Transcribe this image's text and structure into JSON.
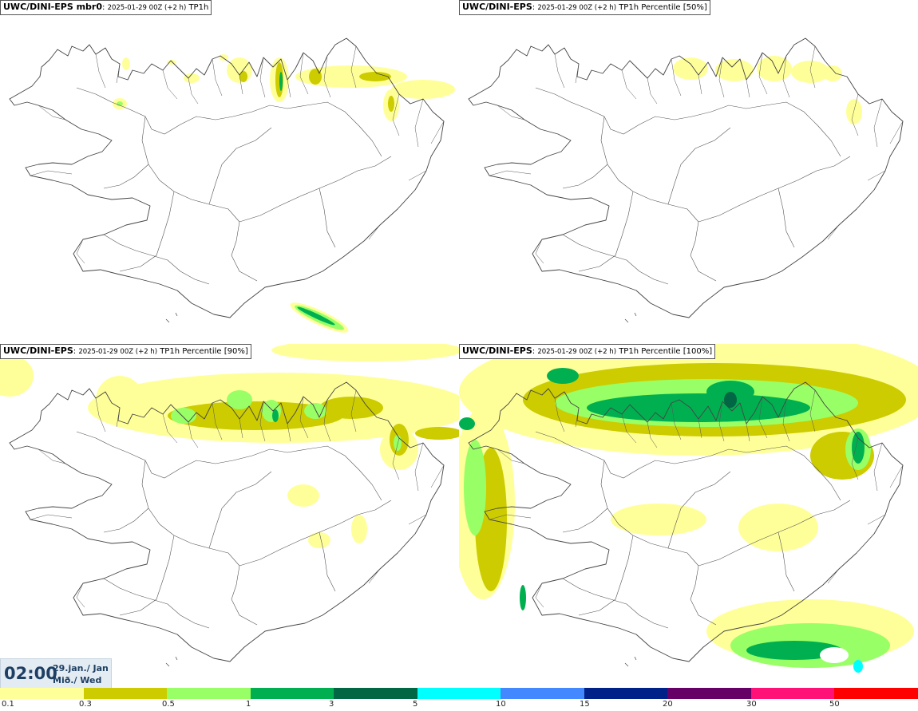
{
  "panels": [
    {
      "model": "UWC/DINI-EPS mbr0",
      "run": "2025-01-29 00Z (+2 h)",
      "field": "TP1h"
    },
    {
      "model": "UWC/DINI-EPS",
      "run": "2025-01-29 00Z (+2 h)",
      "field": "TP1h Percentile [50%]"
    },
    {
      "model": "UWC/DINI-EPS",
      "run": "2025-01-29 00Z (+2 h)",
      "field": "TP1h Percentile [90%]"
    },
    {
      "model": "UWC/DINI-EPS",
      "run": "2025-01-29 00Z (+2 h)",
      "field": "TP1h Percentile [100%]"
    }
  ],
  "time": {
    "hour": "02:00",
    "date": "29.jan./ Jan",
    "day": "Mið./ Wed"
  },
  "legend": {
    "colors": [
      "#ffff99",
      "#cccc00",
      "#99ff66",
      "#00b050",
      "#006644",
      "#00ffff",
      "#4488ff",
      "#002288",
      "#660066",
      "#ff1177",
      "#ff0000"
    ],
    "labels": [
      "0.1",
      "0.3",
      "0.5",
      "1",
      "3",
      "5",
      "10",
      "15",
      "20",
      "30",
      "50"
    ]
  }
}
